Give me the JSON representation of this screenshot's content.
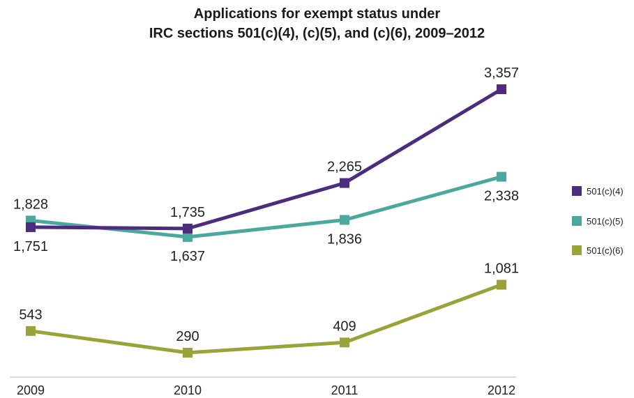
{
  "chart_data": {
    "type": "line",
    "title_line1": "Applications for exempt status under",
    "title_line2": "IRC sections 501(c)(4), (c)(5), and (c)(6), 2009–2012",
    "categories": [
      "2009",
      "2010",
      "2011",
      "2012"
    ],
    "series": [
      {
        "name": "501(c)(4)",
        "color": "#4b2c7f",
        "values": [
          1751,
          1735,
          2265,
          3357
        ],
        "labels": [
          "1,751",
          "1,735",
          "2,265",
          "3,357"
        ],
        "label_pos": [
          "below",
          "above",
          "above",
          "above"
        ]
      },
      {
        "name": "501(c)(5)",
        "color": "#4aa89f",
        "values": [
          1828,
          1637,
          1836,
          2338
        ],
        "labels": [
          "1,828",
          "1,637",
          "1,836",
          "2,338"
        ],
        "label_pos": [
          "above",
          "below",
          "below",
          "below"
        ]
      },
      {
        "name": "501(c)(6)",
        "color": "#9aa33a",
        "values": [
          543,
          290,
          409,
          1081
        ],
        "labels": [
          "543",
          "290",
          "409",
          "1,081"
        ],
        "label_pos": [
          "above",
          "above",
          "above",
          "above"
        ]
      }
    ],
    "ylim": [
      0,
      3500
    ],
    "grid": false,
    "legend_position": "right"
  }
}
